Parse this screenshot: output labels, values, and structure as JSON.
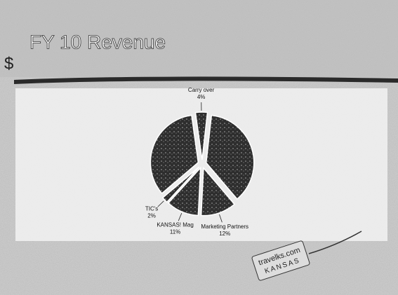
{
  "chart_data": {
    "type": "pie",
    "title": "FY 10 Revenue",
    "subtitle": "$",
    "categories": [
      "Carry over",
      null,
      "Marketing Partners",
      "KANSAS! Mag",
      "TIC's",
      null
    ],
    "values": [
      4,
      37,
      12,
      11,
      2,
      34
    ],
    "value_labels": [
      "4%",
      null,
      "12%",
      "11%",
      "2%",
      null
    ],
    "color": "#3a3a3a",
    "start_angle": -8,
    "exploded": true
  },
  "logo": {
    "lines": [
      "travelks.com",
      "KANSAS"
    ]
  }
}
